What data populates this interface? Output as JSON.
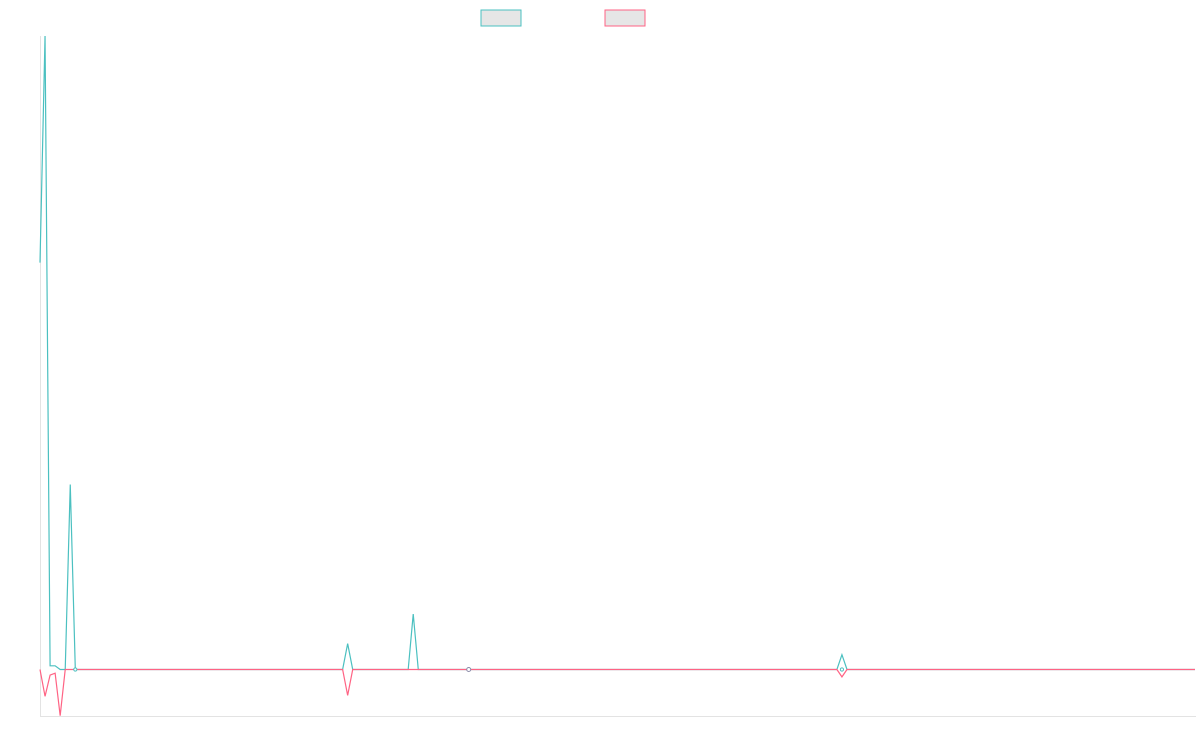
{
  "chart_data": {
    "type": "line",
    "title": "",
    "xlabel": "",
    "ylabel": "",
    "grid": false,
    "legend_placement": "top-center",
    "x_count": 230,
    "ylim": [
      -100,
      1370
    ],
    "series": [
      {
        "color": "#4bc0c0",
        "points": [
          [
            0,
            880
          ],
          [
            1,
            1370
          ],
          [
            2,
            8
          ],
          [
            3,
            8
          ],
          [
            4,
            0
          ],
          [
            5,
            0
          ],
          [
            6,
            400
          ],
          [
            7,
            0
          ],
          [
            60,
            0
          ],
          [
            61,
            56
          ],
          [
            62,
            0
          ],
          [
            73,
            0
          ],
          [
            74,
            120
          ],
          [
            75,
            0
          ],
          [
            84,
            0
          ],
          [
            85,
            0
          ],
          [
            86,
            0
          ],
          [
            158,
            0
          ],
          [
            159,
            32
          ],
          [
            160,
            0
          ],
          [
            229,
            0
          ]
        ]
      },
      {
        "color": "#ff6384",
        "points": [
          [
            0,
            0
          ],
          [
            1,
            -58
          ],
          [
            2,
            -12
          ],
          [
            3,
            -8
          ],
          [
            4,
            -100
          ],
          [
            5,
            0
          ],
          [
            6,
            0
          ],
          [
            7,
            0
          ],
          [
            60,
            0
          ],
          [
            61,
            -56
          ],
          [
            62,
            0
          ],
          [
            73,
            0
          ],
          [
            74,
            0
          ],
          [
            75,
            0
          ],
          [
            84,
            0
          ],
          [
            85,
            0
          ],
          [
            86,
            0
          ],
          [
            158,
            0
          ],
          [
            159,
            -16
          ],
          [
            160,
            0
          ],
          [
            229,
            0
          ]
        ]
      }
    ]
  }
}
